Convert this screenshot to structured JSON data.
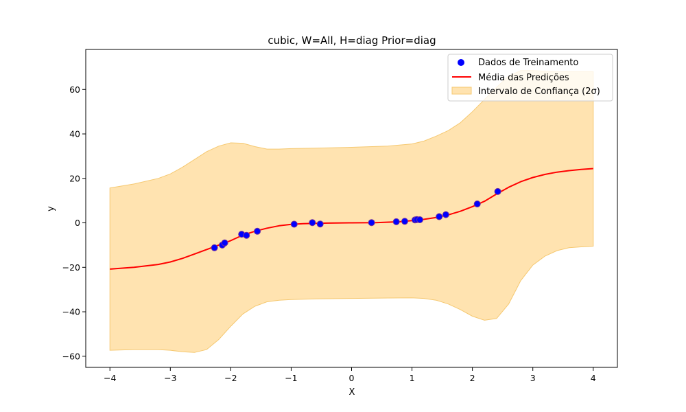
{
  "chart_data": {
    "type": "scatter",
    "title": "cubic, W=All, H=diag Prior=diag",
    "xlabel": "X",
    "ylabel": "y",
    "xlim": [
      -4.4,
      4.4
    ],
    "ylim": [
      -65,
      78
    ],
    "x_ticks": [
      -4,
      -3,
      -2,
      -1,
      0,
      1,
      2,
      3,
      4
    ],
    "y_ticks": [
      -60,
      -40,
      -20,
      0,
      20,
      40,
      60
    ],
    "x_tick_labels": [
      "−4",
      "−3",
      "−2",
      "−1",
      "0",
      "1",
      "2",
      "3",
      "4"
    ],
    "y_tick_labels": [
      "−60",
      "−40",
      "−20",
      "0",
      "20",
      "40",
      "60"
    ],
    "grid": false,
    "legend_position": "top-right",
    "colors": {
      "points_fill": "#0000ff",
      "points_edge": "#7030a0",
      "mean_line": "#ff0000",
      "band_fill": "#ffe3b0",
      "band_edge": "#f5c870"
    },
    "series": [
      {
        "name": "Dados de Treinamento",
        "kind": "scatter",
        "points": [
          [
            -2.27,
            -11.2
          ],
          [
            -2.14,
            -10.0
          ],
          [
            -2.1,
            -9.0
          ],
          [
            -1.82,
            -5.1
          ],
          [
            -1.74,
            -5.6
          ],
          [
            -1.56,
            -3.8
          ],
          [
            -0.95,
            -0.6
          ],
          [
            -0.65,
            0.1
          ],
          [
            -0.52,
            -0.5
          ],
          [
            0.33,
            0.1
          ],
          [
            0.74,
            0.5
          ],
          [
            0.88,
            0.7
          ],
          [
            1.05,
            1.3
          ],
          [
            1.08,
            1.5
          ],
          [
            1.13,
            1.4
          ],
          [
            1.45,
            2.8
          ],
          [
            1.56,
            3.7
          ],
          [
            2.08,
            8.5
          ],
          [
            2.42,
            14.1
          ]
        ]
      },
      {
        "name": "Média das Predições",
        "kind": "line",
        "points": [
          [
            -4.0,
            -20.8
          ],
          [
            -3.6,
            -20.0
          ],
          [
            -3.2,
            -18.7
          ],
          [
            -3.0,
            -17.6
          ],
          [
            -2.8,
            -16.0
          ],
          [
            -2.6,
            -14.0
          ],
          [
            -2.4,
            -12.0
          ],
          [
            -2.2,
            -10.0
          ],
          [
            -2.0,
            -8.0
          ],
          [
            -1.8,
            -5.5
          ],
          [
            -1.6,
            -3.8
          ],
          [
            -1.4,
            -2.4
          ],
          [
            -1.2,
            -1.3
          ],
          [
            -1.0,
            -0.7
          ],
          [
            -0.8,
            -0.4
          ],
          [
            -0.6,
            -0.2
          ],
          [
            -0.4,
            -0.1
          ],
          [
            0.0,
            0.0
          ],
          [
            0.4,
            0.1
          ],
          [
            0.8,
            0.5
          ],
          [
            1.0,
            1.0
          ],
          [
            1.2,
            1.6
          ],
          [
            1.4,
            2.4
          ],
          [
            1.6,
            3.6
          ],
          [
            1.8,
            5.2
          ],
          [
            2.0,
            7.3
          ],
          [
            2.2,
            9.7
          ],
          [
            2.4,
            13.0
          ],
          [
            2.6,
            16.0
          ],
          [
            2.8,
            18.5
          ],
          [
            3.0,
            20.4
          ],
          [
            3.2,
            21.8
          ],
          [
            3.4,
            22.8
          ],
          [
            3.6,
            23.5
          ],
          [
            3.8,
            24.0
          ],
          [
            4.0,
            24.4
          ]
        ]
      },
      {
        "name": "Intervalo de Confiança (2σ)",
        "kind": "band",
        "x": [
          -4.0,
          -3.6,
          -3.2,
          -3.0,
          -2.8,
          -2.6,
          -2.4,
          -2.2,
          -2.0,
          -1.8,
          -1.6,
          -1.4,
          -1.2,
          -1.0,
          -0.6,
          0.0,
          0.6,
          1.0,
          1.2,
          1.4,
          1.6,
          1.8,
          2.0,
          2.2,
          2.4,
          2.6,
          2.8,
          3.0,
          3.2,
          3.4,
          3.6,
          3.8,
          4.0
        ],
        "upper": [
          15.7,
          17.5,
          20.0,
          22.0,
          25.0,
          28.5,
          32.0,
          34.5,
          36.0,
          35.8,
          34.3,
          33.2,
          33.2,
          33.4,
          33.6,
          34.0,
          34.5,
          35.5,
          36.8,
          39.0,
          41.5,
          45.0,
          50.0,
          55.5,
          61.0,
          66.0,
          68.5,
          68.5,
          68.2,
          68.0,
          68.0,
          68.0,
          68.0
        ],
        "lower": [
          -57.3,
          -57.0,
          -57.0,
          -57.3,
          -58.0,
          -58.3,
          -57.0,
          -52.5,
          -46.5,
          -41.0,
          -37.5,
          -35.5,
          -34.8,
          -34.5,
          -34.2,
          -34.0,
          -33.8,
          -33.7,
          -34.0,
          -34.8,
          -36.5,
          -39.0,
          -42.0,
          -43.8,
          -43.0,
          -36.5,
          -26.0,
          -19.0,
          -15.0,
          -12.5,
          -11.2,
          -10.8,
          -10.5
        ]
      }
    ]
  }
}
